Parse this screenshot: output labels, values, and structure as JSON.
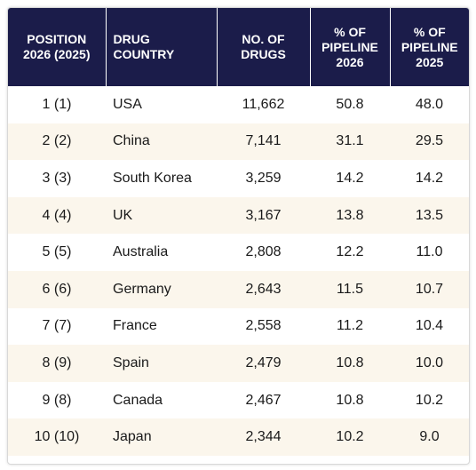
{
  "table": {
    "headers": {
      "position": [
        "POSITION",
        "2026 (2025)"
      ],
      "country": [
        "DRUG",
        "COUNTRY"
      ],
      "drugs": [
        "NO. OF",
        "DRUGS"
      ],
      "pipeline2026": [
        "% OF",
        "PIPELINE",
        "2026"
      ],
      "pipeline2025": [
        "% OF",
        "PIPELINE",
        "2025"
      ]
    },
    "rows": [
      {
        "position": "1 (1)",
        "country": "USA",
        "drugs": "11,662",
        "p2026": "50.8",
        "p2025": "48.0"
      },
      {
        "position": "2 (2)",
        "country": "China",
        "drugs": "7,141",
        "p2026": "31.1",
        "p2025": "29.5"
      },
      {
        "position": "3 (3)",
        "country": "South Korea",
        "drugs": "3,259",
        "p2026": "14.2",
        "p2025": "14.2"
      },
      {
        "position": "4 (4)",
        "country": "UK",
        "drugs": "3,167",
        "p2026": "13.8",
        "p2025": "13.5"
      },
      {
        "position": "5 (5)",
        "country": "Australia",
        "drugs": "2,808",
        "p2026": "12.2",
        "p2025": "11.0"
      },
      {
        "position": "6 (6)",
        "country": "Germany",
        "drugs": "2,643",
        "p2026": "11.5",
        "p2025": "10.7"
      },
      {
        "position": "7 (7)",
        "country": "France",
        "drugs": "2,558",
        "p2026": "11.2",
        "p2025": "10.4"
      },
      {
        "position": "8 (9)",
        "country": "Spain",
        "drugs": "2,479",
        "p2026": "10.8",
        "p2025": "10.0"
      },
      {
        "position": "9 (8)",
        "country": "Canada",
        "drugs": "2,467",
        "p2026": "10.8",
        "p2025": "10.2"
      },
      {
        "position": "10 (10)",
        "country": "Japan",
        "drugs": "2,344",
        "p2026": "10.2",
        "p2025": "9.0"
      }
    ]
  },
  "colors": {
    "header_bg": "#1b1c4a",
    "header_text": "#ffffff",
    "row_alt_bg": "#fbf6ec"
  }
}
